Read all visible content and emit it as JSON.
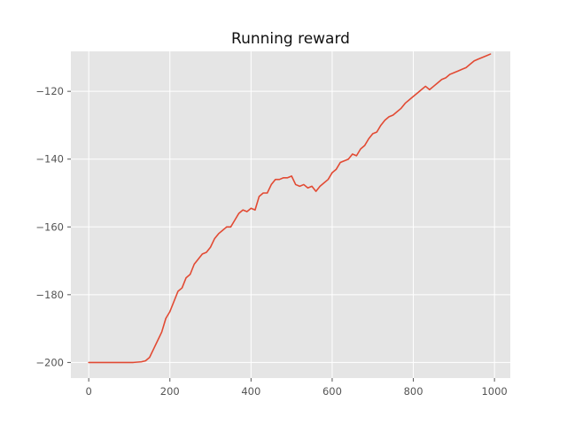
{
  "chart_data": {
    "type": "line",
    "title": "Running reward",
    "xlabel": "",
    "ylabel": "",
    "xlim": [
      -44,
      1039
    ],
    "ylim": [
      -204.6,
      -108.2
    ],
    "xticks": [
      0,
      200,
      400,
      600,
      800,
      1000
    ],
    "yticks": [
      -200,
      -180,
      -160,
      -140,
      -120
    ],
    "grid": true,
    "series": [
      {
        "color": "#E24A33",
        "x": [
          0,
          50,
          100,
          110,
          130,
          140,
          150,
          160,
          170,
          180,
          190,
          200,
          210,
          220,
          230,
          240,
          250,
          260,
          270,
          280,
          290,
          300,
          310,
          320,
          330,
          340,
          350,
          360,
          370,
          380,
          390,
          400,
          410,
          420,
          430,
          440,
          450,
          460,
          470,
          480,
          490,
          500,
          510,
          520,
          530,
          540,
          550,
          560,
          570,
          580,
          590,
          600,
          610,
          620,
          630,
          640,
          650,
          660,
          670,
          680,
          690,
          700,
          710,
          720,
          730,
          740,
          750,
          760,
          770,
          780,
          790,
          800,
          810,
          820,
          830,
          840,
          850,
          860,
          870,
          880,
          890,
          900,
          910,
          920,
          930,
          940,
          950,
          960,
          970,
          980,
          990
        ],
        "y": [
          -200,
          -200,
          -200,
          -200,
          -199.8,
          -199.5,
          -198.5,
          -196,
          -193.5,
          -191,
          -187,
          -185,
          -182,
          -179,
          -178,
          -175,
          -174,
          -171,
          -169.5,
          -168,
          -167.5,
          -166,
          -163.5,
          -162,
          -161,
          -160,
          -160,
          -158,
          -156,
          -155,
          -155.5,
          -154.5,
          -155,
          -151,
          -150,
          -150,
          -147.5,
          -146,
          -146,
          -145.5,
          -145.5,
          -145,
          -147.5,
          -148,
          -147.5,
          -148.5,
          -148,
          -149.5,
          -148,
          -147,
          -146,
          -144,
          -143,
          -141,
          -140.5,
          -140,
          -138.5,
          -139,
          -137,
          -136,
          -134,
          -132.5,
          -132,
          -130,
          -128.5,
          -127.5,
          -127,
          -126,
          -125,
          -123.5,
          -122.5,
          -121.5,
          -120.5,
          -119.5,
          -118.5,
          -119.5,
          -118.5,
          -117.5,
          -116.5,
          -116,
          -115,
          -114.5,
          -114,
          -113.5,
          -113,
          -112,
          -111,
          -110.5,
          -110,
          -109.5,
          -109
        ]
      }
    ]
  }
}
